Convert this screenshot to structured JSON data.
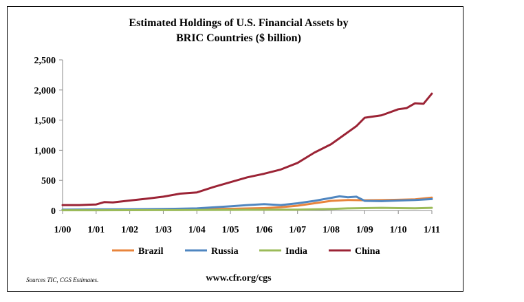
{
  "chart_data": {
    "type": "line",
    "title_line1": "Estimated Holdings of U.S. Financial Assets by",
    "title_line2": "BRIC Countries ($ billion)",
    "xlabel": "",
    "ylabel": "",
    "ylim": [
      0,
      2500
    ],
    "y_ticks": [
      0,
      500,
      1000,
      1500,
      2000,
      2500
    ],
    "y_tick_labels": [
      "0",
      "500",
      "1,000",
      "1,500",
      "2,000",
      "2,500"
    ],
    "x_tick_labels": [
      "1/00",
      "1/01",
      "1/02",
      "1/03",
      "1/04",
      "1/05",
      "1/06",
      "1/07",
      "1/08",
      "1/09",
      "1/10",
      "1/11"
    ],
    "x_range": [
      2000.0,
      2011.0
    ],
    "grid": false,
    "legend_position": "bottom",
    "series": [
      {
        "name": "Brazil",
        "color": "#e8843c",
        "points": [
          [
            2000.0,
            10
          ],
          [
            2001.0,
            12
          ],
          [
            2002.0,
            14
          ],
          [
            2003.0,
            18
          ],
          [
            2004.0,
            22
          ],
          [
            2005.0,
            28
          ],
          [
            2006.0,
            40
          ],
          [
            2006.5,
            55
          ],
          [
            2007.0,
            80
          ],
          [
            2007.5,
            120
          ],
          [
            2008.0,
            160
          ],
          [
            2008.5,
            175
          ],
          [
            2009.0,
            170
          ],
          [
            2009.5,
            172
          ],
          [
            2010.0,
            178
          ],
          [
            2010.5,
            185
          ],
          [
            2011.0,
            215
          ]
        ]
      },
      {
        "name": "Russia",
        "color": "#4f86c0",
        "points": [
          [
            2000.0,
            15
          ],
          [
            2001.0,
            18
          ],
          [
            2002.0,
            20
          ],
          [
            2003.0,
            25
          ],
          [
            2004.0,
            35
          ],
          [
            2005.0,
            70
          ],
          [
            2005.5,
            90
          ],
          [
            2006.0,
            105
          ],
          [
            2006.5,
            90
          ],
          [
            2007.0,
            120
          ],
          [
            2007.5,
            160
          ],
          [
            2008.0,
            210
          ],
          [
            2008.25,
            235
          ],
          [
            2008.5,
            220
          ],
          [
            2008.75,
            230
          ],
          [
            2009.0,
            160
          ],
          [
            2009.5,
            155
          ],
          [
            2010.0,
            165
          ],
          [
            2010.5,
            175
          ],
          [
            2011.0,
            190
          ]
        ]
      },
      {
        "name": "India",
        "color": "#9bbb59",
        "points": [
          [
            2000.0,
            5
          ],
          [
            2001.0,
            5
          ],
          [
            2002.0,
            6
          ],
          [
            2003.0,
            7
          ],
          [
            2004.0,
            8
          ],
          [
            2005.0,
            10
          ],
          [
            2006.0,
            12
          ],
          [
            2007.0,
            15
          ],
          [
            2008.0,
            25
          ],
          [
            2008.5,
            35
          ],
          [
            2009.0,
            40
          ],
          [
            2009.5,
            45
          ],
          [
            2010.0,
            40
          ],
          [
            2010.5,
            38
          ],
          [
            2011.0,
            45
          ]
        ]
      },
      {
        "name": "China",
        "color": "#9b2335",
        "points": [
          [
            2000.0,
            90
          ],
          [
            2000.5,
            90
          ],
          [
            2001.0,
            100
          ],
          [
            2001.25,
            140
          ],
          [
            2001.5,
            135
          ],
          [
            2002.0,
            165
          ],
          [
            2002.5,
            195
          ],
          [
            2003.0,
            230
          ],
          [
            2003.5,
            280
          ],
          [
            2004.0,
            300
          ],
          [
            2004.5,
            390
          ],
          [
            2005.0,
            470
          ],
          [
            2005.5,
            550
          ],
          [
            2006.0,
            610
          ],
          [
            2006.5,
            680
          ],
          [
            2007.0,
            790
          ],
          [
            2007.5,
            960
          ],
          [
            2008.0,
            1100
          ],
          [
            2008.5,
            1300
          ],
          [
            2008.75,
            1400
          ],
          [
            2009.0,
            1540
          ],
          [
            2009.5,
            1580
          ],
          [
            2010.0,
            1680
          ],
          [
            2010.25,
            1700
          ],
          [
            2010.5,
            1780
          ],
          [
            2010.75,
            1770
          ],
          [
            2011.0,
            1940
          ]
        ]
      }
    ]
  },
  "source_note": "Sources TIC, CGS Estimates.",
  "url": "www.cfr.org/cgs"
}
